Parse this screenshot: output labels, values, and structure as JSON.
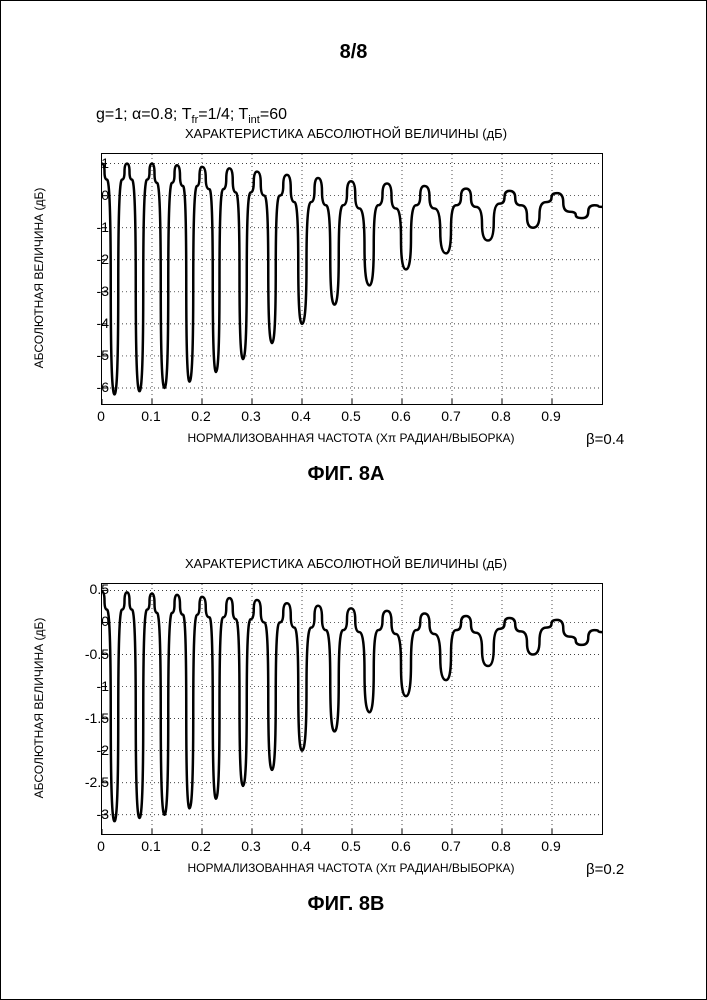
{
  "page_number": "8/8",
  "params_html": "g=1; α=0.8; T<sub>fr</sub>=1/4; T<sub>int</sub>=60",
  "chartA": {
    "type": "line",
    "title": "ХАРАКТЕРИСТИКА АБСОЛЮТНОЙ ВЕЛИЧИНЫ (дБ)",
    "ylabel": "АБСОЛЮТНАЯ ВЕЛИЧИНА (дБ)",
    "xlabel": "НОРМАЛИЗОВАННАЯ ЧАСТОТА (Xπ РАДИАН/ВЫБОРКА)",
    "figure_label": "ФИГ. 8A",
    "beta": "β=0.4",
    "xlim": [
      0,
      1
    ],
    "ylim": [
      -6.5,
      1.3
    ],
    "xticks": [
      0,
      0.1,
      0.2,
      0.3,
      0.4,
      0.5,
      0.6,
      0.7,
      0.8,
      0.9
    ],
    "yticks": [
      -6,
      -5,
      -4,
      -3,
      -2,
      -1,
      0,
      1
    ],
    "grid_x": [
      0.1,
      0.2,
      0.3,
      0.4,
      0.5,
      0.6,
      0.7,
      0.8,
      0.9
    ],
    "grid_y": [
      -6,
      -5,
      -4,
      -3,
      -2,
      -1,
      0,
      1
    ],
    "colors": {
      "line": "#000000",
      "grid": "#000000",
      "bg": "#ffffff"
    },
    "line_width": 2.5,
    "series": [
      {
        "x": 0.0,
        "y": 1.0
      },
      {
        "x": 0.01,
        "y": 0.5
      },
      {
        "x": 0.025,
        "y": -6.2
      },
      {
        "x": 0.04,
        "y": 0.5
      },
      {
        "x": 0.05,
        "y": 1.0
      },
      {
        "x": 0.06,
        "y": 0.5
      },
      {
        "x": 0.075,
        "y": -6.1
      },
      {
        "x": 0.09,
        "y": 0.5
      },
      {
        "x": 0.1,
        "y": 1.0
      },
      {
        "x": 0.11,
        "y": 0.4
      },
      {
        "x": 0.125,
        "y": -6.0
      },
      {
        "x": 0.14,
        "y": 0.4
      },
      {
        "x": 0.15,
        "y": 0.95
      },
      {
        "x": 0.162,
        "y": 0.3
      },
      {
        "x": 0.175,
        "y": -5.8
      },
      {
        "x": 0.19,
        "y": 0.3
      },
      {
        "x": 0.2,
        "y": 0.9
      },
      {
        "x": 0.215,
        "y": 0.2
      },
      {
        "x": 0.228,
        "y": -5.5
      },
      {
        "x": 0.242,
        "y": 0.2
      },
      {
        "x": 0.255,
        "y": 0.85
      },
      {
        "x": 0.268,
        "y": 0.1
      },
      {
        "x": 0.282,
        "y": -5.1
      },
      {
        "x": 0.297,
        "y": 0.1
      },
      {
        "x": 0.31,
        "y": 0.75
      },
      {
        "x": 0.325,
        "y": 0.0
      },
      {
        "x": 0.34,
        "y": -4.6
      },
      {
        "x": 0.355,
        "y": 0.0
      },
      {
        "x": 0.37,
        "y": 0.65
      },
      {
        "x": 0.385,
        "y": -0.2
      },
      {
        "x": 0.4,
        "y": -4.0
      },
      {
        "x": 0.418,
        "y": -0.2
      },
      {
        "x": 0.432,
        "y": 0.55
      },
      {
        "x": 0.448,
        "y": -0.3
      },
      {
        "x": 0.465,
        "y": -3.4
      },
      {
        "x": 0.482,
        "y": -0.3
      },
      {
        "x": 0.498,
        "y": 0.45
      },
      {
        "x": 0.515,
        "y": -0.4
      },
      {
        "x": 0.535,
        "y": -2.8
      },
      {
        "x": 0.552,
        "y": -0.3
      },
      {
        "x": 0.57,
        "y": 0.38
      },
      {
        "x": 0.588,
        "y": -0.4
      },
      {
        "x": 0.608,
        "y": -2.3
      },
      {
        "x": 0.628,
        "y": -0.3
      },
      {
        "x": 0.645,
        "y": 0.3
      },
      {
        "x": 0.665,
        "y": -0.4
      },
      {
        "x": 0.688,
        "y": -1.8
      },
      {
        "x": 0.708,
        "y": -0.3
      },
      {
        "x": 0.728,
        "y": 0.22
      },
      {
        "x": 0.748,
        "y": -0.35
      },
      {
        "x": 0.772,
        "y": -1.4
      },
      {
        "x": 0.795,
        "y": -0.25
      },
      {
        "x": 0.815,
        "y": 0.15
      },
      {
        "x": 0.838,
        "y": -0.3
      },
      {
        "x": 0.862,
        "y": -1.0
      },
      {
        "x": 0.888,
        "y": -0.2
      },
      {
        "x": 0.91,
        "y": 0.08
      },
      {
        "x": 0.935,
        "y": -0.5
      },
      {
        "x": 0.96,
        "y": -0.7
      },
      {
        "x": 0.985,
        "y": -0.3
      },
      {
        "x": 1.0,
        "y": -0.35
      }
    ]
  },
  "chartB": {
    "type": "line",
    "title": "ХАРАКТЕРИСТИКА АБСОЛЮТНОЙ ВЕЛИЧИНЫ (дБ)",
    "ylabel": "АБСОЛЮТНАЯ ВЕЛИЧИНА (дБ)",
    "xlabel": "НОРМАЛИЗОВАННАЯ ЧАСТОТА (Xπ РАДИАН/ВЫБОРКА)",
    "figure_label": "ФИГ. 8B",
    "beta": "β=0.2",
    "xlim": [
      0,
      1
    ],
    "ylim": [
      -3.3,
      0.6
    ],
    "xticks": [
      0,
      0.1,
      0.2,
      0.3,
      0.4,
      0.5,
      0.6,
      0.7,
      0.8,
      0.9
    ],
    "yticks": [
      -3,
      -2.5,
      -2,
      -1.5,
      -1,
      -0.5,
      0,
      0.5
    ],
    "grid_x": [
      0.1,
      0.2,
      0.3,
      0.4,
      0.5,
      0.6,
      0.7,
      0.8,
      0.9
    ],
    "grid_y": [
      -3,
      -2.5,
      -2,
      -1.5,
      -1,
      -0.5,
      0,
      0.5
    ],
    "colors": {
      "line": "#000000",
      "grid": "#000000",
      "bg": "#ffffff"
    },
    "line_width": 2.5,
    "series": [
      {
        "x": 0.0,
        "y": 0.48
      },
      {
        "x": 0.01,
        "y": 0.2
      },
      {
        "x": 0.025,
        "y": -3.1
      },
      {
        "x": 0.04,
        "y": 0.2
      },
      {
        "x": 0.05,
        "y": 0.47
      },
      {
        "x": 0.06,
        "y": 0.2
      },
      {
        "x": 0.075,
        "y": -3.05
      },
      {
        "x": 0.09,
        "y": 0.2
      },
      {
        "x": 0.1,
        "y": 0.45
      },
      {
        "x": 0.11,
        "y": 0.15
      },
      {
        "x": 0.125,
        "y": -3.0
      },
      {
        "x": 0.14,
        "y": 0.15
      },
      {
        "x": 0.15,
        "y": 0.43
      },
      {
        "x": 0.162,
        "y": 0.12
      },
      {
        "x": 0.175,
        "y": -2.9
      },
      {
        "x": 0.19,
        "y": 0.12
      },
      {
        "x": 0.2,
        "y": 0.4
      },
      {
        "x": 0.215,
        "y": 0.08
      },
      {
        "x": 0.228,
        "y": -2.75
      },
      {
        "x": 0.242,
        "y": 0.08
      },
      {
        "x": 0.255,
        "y": 0.38
      },
      {
        "x": 0.268,
        "y": 0.05
      },
      {
        "x": 0.282,
        "y": -2.55
      },
      {
        "x": 0.297,
        "y": 0.05
      },
      {
        "x": 0.31,
        "y": 0.35
      },
      {
        "x": 0.325,
        "y": 0.0
      },
      {
        "x": 0.34,
        "y": -2.3
      },
      {
        "x": 0.355,
        "y": 0.0
      },
      {
        "x": 0.37,
        "y": 0.3
      },
      {
        "x": 0.385,
        "y": -0.08
      },
      {
        "x": 0.4,
        "y": -2.0
      },
      {
        "x": 0.418,
        "y": -0.08
      },
      {
        "x": 0.432,
        "y": 0.26
      },
      {
        "x": 0.448,
        "y": -0.12
      },
      {
        "x": 0.465,
        "y": -1.7
      },
      {
        "x": 0.482,
        "y": -0.12
      },
      {
        "x": 0.498,
        "y": 0.22
      },
      {
        "x": 0.515,
        "y": -0.15
      },
      {
        "x": 0.535,
        "y": -1.4
      },
      {
        "x": 0.552,
        "y": -0.12
      },
      {
        "x": 0.57,
        "y": 0.18
      },
      {
        "x": 0.588,
        "y": -0.18
      },
      {
        "x": 0.608,
        "y": -1.15
      },
      {
        "x": 0.628,
        "y": -0.12
      },
      {
        "x": 0.645,
        "y": 0.14
      },
      {
        "x": 0.665,
        "y": -0.18
      },
      {
        "x": 0.688,
        "y": -0.9
      },
      {
        "x": 0.708,
        "y": -0.12
      },
      {
        "x": 0.728,
        "y": 0.1
      },
      {
        "x": 0.748,
        "y": -0.16
      },
      {
        "x": 0.772,
        "y": -0.68
      },
      {
        "x": 0.795,
        "y": -0.1
      },
      {
        "x": 0.815,
        "y": 0.07
      },
      {
        "x": 0.838,
        "y": -0.14
      },
      {
        "x": 0.862,
        "y": -0.5
      },
      {
        "x": 0.888,
        "y": -0.08
      },
      {
        "x": 0.91,
        "y": 0.04
      },
      {
        "x": 0.935,
        "y": -0.22
      },
      {
        "x": 0.96,
        "y": -0.35
      },
      {
        "x": 0.985,
        "y": -0.12
      },
      {
        "x": 1.0,
        "y": -0.15
      }
    ]
  }
}
